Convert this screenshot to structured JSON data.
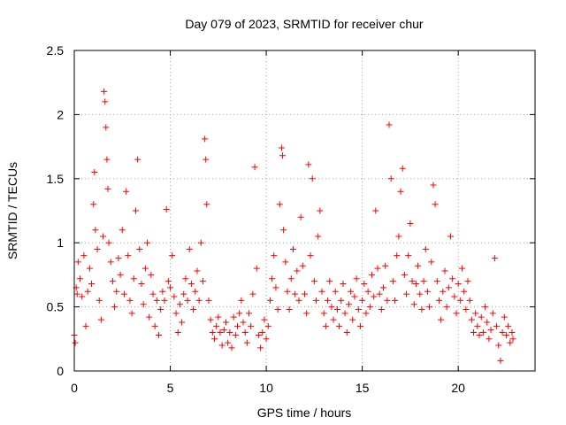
{
  "chart_data": {
    "type": "scatter",
    "title": "Day 079 of 2023, SRMTID for receiver chur",
    "xlabel": "GPS time / hours",
    "ylabel": "SRMTID / TECUs",
    "xlim": [
      0,
      24
    ],
    "ylim": [
      0,
      2.5
    ],
    "x_ticks": [
      0,
      5,
      10,
      15,
      20
    ],
    "x_tick_labels": [
      "0",
      "5",
      "10",
      "15",
      "20"
    ],
    "y_ticks": [
      0,
      0.5,
      1,
      1.5,
      2,
      2.5
    ],
    "y_tick_labels": [
      "0",
      "0.5",
      "1",
      "1.5",
      "2",
      "2.5"
    ],
    "grid": true,
    "marker": "+",
    "color": "#ff0000",
    "series": [
      {
        "name": "SRMTID",
        "points": [
          [
            0.0,
            0.28
          ],
          [
            0.05,
            0.22
          ],
          [
            0.1,
            0.65
          ],
          [
            0.15,
            0.6
          ],
          [
            0.2,
            0.85
          ],
          [
            0.3,
            0.72
          ],
          [
            0.4,
            0.58
          ],
          [
            0.5,
            0.9
          ],
          [
            0.6,
            0.35
          ],
          [
            0.7,
            0.62
          ],
          [
            0.8,
            0.8
          ],
          [
            0.9,
            0.68
          ],
          [
            1.0,
            1.3
          ],
          [
            1.05,
            1.55
          ],
          [
            1.1,
            1.1
          ],
          [
            1.2,
            0.95
          ],
          [
            1.3,
            0.55
          ],
          [
            1.4,
            0.4
          ],
          [
            1.5,
            1.05
          ],
          [
            1.55,
            2.18
          ],
          [
            1.6,
            2.1
          ],
          [
            1.65,
            1.9
          ],
          [
            1.7,
            1.65
          ],
          [
            1.75,
            1.42
          ],
          [
            1.8,
            1.0
          ],
          [
            1.9,
            0.85
          ],
          [
            2.0,
            0.7
          ],
          [
            2.1,
            0.5
          ],
          [
            2.2,
            0.62
          ],
          [
            2.3,
            0.88
          ],
          [
            2.4,
            0.75
          ],
          [
            2.5,
            1.1
          ],
          [
            2.6,
            0.6
          ],
          [
            2.7,
            1.4
          ],
          [
            2.8,
            0.9
          ],
          [
            2.9,
            0.55
          ],
          [
            3.0,
            0.45
          ],
          [
            3.1,
            0.72
          ],
          [
            3.2,
            1.25
          ],
          [
            3.3,
            1.65
          ],
          [
            3.4,
            0.95
          ],
          [
            3.5,
            0.68
          ],
          [
            3.6,
            0.52
          ],
          [
            3.7,
            0.8
          ],
          [
            3.8,
            1.0
          ],
          [
            3.9,
            0.42
          ],
          [
            4.0,
            0.75
          ],
          [
            4.1,
            0.6
          ],
          [
            4.2,
            0.35
          ],
          [
            4.3,
            0.55
          ],
          [
            4.4,
            0.28
          ],
          [
            4.5,
            0.48
          ],
          [
            4.6,
            0.62
          ],
          [
            4.7,
            0.55
          ],
          [
            4.8,
            1.26
          ],
          [
            4.9,
            0.7
          ],
          [
            5.0,
            0.65
          ],
          [
            5.1,
            0.9
          ],
          [
            5.2,
            0.58
          ],
          [
            5.3,
            0.45
          ],
          [
            5.4,
            0.3
          ],
          [
            5.5,
            0.52
          ],
          [
            5.6,
            0.38
          ],
          [
            5.7,
            0.6
          ],
          [
            5.8,
            0.72
          ],
          [
            5.9,
            0.55
          ],
          [
            6.0,
            0.95
          ],
          [
            6.1,
            0.68
          ],
          [
            6.2,
            0.48
          ],
          [
            6.3,
            0.62
          ],
          [
            6.4,
            0.78
          ],
          [
            6.5,
            0.55
          ],
          [
            6.6,
            1.0
          ],
          [
            6.7,
            0.7
          ],
          [
            6.8,
            1.81
          ],
          [
            6.85,
            1.65
          ],
          [
            6.9,
            1.3
          ],
          [
            7.0,
            0.55
          ],
          [
            7.1,
            0.4
          ],
          [
            7.2,
            0.3
          ],
          [
            7.3,
            0.25
          ],
          [
            7.4,
            0.35
          ],
          [
            7.5,
            0.42
          ],
          [
            7.6,
            0.3
          ],
          [
            7.7,
            0.2
          ],
          [
            7.8,
            0.32
          ],
          [
            7.9,
            0.38
          ],
          [
            8.0,
            0.22
          ],
          [
            8.1,
            0.3
          ],
          [
            8.2,
            0.18
          ],
          [
            8.3,
            0.42
          ],
          [
            8.4,
            0.28
          ],
          [
            8.5,
            0.35
          ],
          [
            8.6,
            0.45
          ],
          [
            8.7,
            0.55
          ],
          [
            8.8,
            0.38
          ],
          [
            8.9,
            0.3
          ],
          [
            9.0,
            0.22
          ],
          [
            9.1,
            0.45
          ],
          [
            9.2,
            0.35
          ],
          [
            9.3,
            0.6
          ],
          [
            9.4,
            1.59
          ],
          [
            9.5,
            0.8
          ],
          [
            9.6,
            0.28
          ],
          [
            9.7,
            0.18
          ],
          [
            9.8,
            0.3
          ],
          [
            9.9,
            0.4
          ],
          [
            10.0,
            0.25
          ],
          [
            10.1,
            0.35
          ],
          [
            10.2,
            0.55
          ],
          [
            10.3,
            0.72
          ],
          [
            10.4,
            0.9
          ],
          [
            10.5,
            0.65
          ],
          [
            10.6,
            0.48
          ],
          [
            10.7,
            1.3
          ],
          [
            10.8,
            1.74
          ],
          [
            10.85,
            1.68
          ],
          [
            10.9,
            1.1
          ],
          [
            11.0,
            0.85
          ],
          [
            11.1,
            0.62
          ],
          [
            11.2,
            0.48
          ],
          [
            11.3,
            0.72
          ],
          [
            11.4,
            0.95
          ],
          [
            11.5,
            0.6
          ],
          [
            11.6,
            0.78
          ],
          [
            11.7,
            0.55
          ],
          [
            11.8,
            1.2
          ],
          [
            11.9,
            0.82
          ],
          [
            12.0,
            0.6
          ],
          [
            12.1,
            0.45
          ],
          [
            12.2,
            1.61
          ],
          [
            12.3,
            0.9
          ],
          [
            12.4,
            1.5
          ],
          [
            12.5,
            0.7
          ],
          [
            12.6,
            0.55
          ],
          [
            12.7,
            1.05
          ],
          [
            12.8,
            1.25
          ],
          [
            12.9,
            0.62
          ],
          [
            13.0,
            0.45
          ],
          [
            13.1,
            0.35
          ],
          [
            13.2,
            0.55
          ],
          [
            13.3,
            0.7
          ],
          [
            13.4,
            0.5
          ],
          [
            13.5,
            0.4
          ],
          [
            13.6,
            0.62
          ],
          [
            13.7,
            0.48
          ],
          [
            13.8,
            0.35
          ],
          [
            13.9,
            0.55
          ],
          [
            14.0,
            0.68
          ],
          [
            14.1,
            0.45
          ],
          [
            14.2,
            0.3
          ],
          [
            14.3,
            0.52
          ],
          [
            14.4,
            0.62
          ],
          [
            14.5,
            0.4
          ],
          [
            14.6,
            0.58
          ],
          [
            14.7,
            0.72
          ],
          [
            14.8,
            0.48
          ],
          [
            14.9,
            0.35
          ],
          [
            15.0,
            0.55
          ],
          [
            15.1,
            0.68
          ],
          [
            15.2,
            0.45
          ],
          [
            15.3,
            0.62
          ],
          [
            15.4,
            0.5
          ],
          [
            15.5,
            0.75
          ],
          [
            15.6,
            0.58
          ],
          [
            15.7,
            1.25
          ],
          [
            15.8,
            0.8
          ],
          [
            15.9,
            0.6
          ],
          [
            16.0,
            0.48
          ],
          [
            16.1,
            0.65
          ],
          [
            16.2,
            0.82
          ],
          [
            16.3,
            0.55
          ],
          [
            16.4,
            1.92
          ],
          [
            16.5,
            1.5
          ],
          [
            16.6,
            0.7
          ],
          [
            16.7,
            0.55
          ],
          [
            16.8,
            0.9
          ],
          [
            16.9,
            1.05
          ],
          [
            17.0,
            1.4
          ],
          [
            17.1,
            1.58
          ],
          [
            17.2,
            0.75
          ],
          [
            17.3,
            0.6
          ],
          [
            17.4,
            0.9
          ],
          [
            17.5,
            1.15
          ],
          [
            17.6,
            0.7
          ],
          [
            17.7,
            0.52
          ],
          [
            17.8,
            0.68
          ],
          [
            17.9,
            0.82
          ],
          [
            18.0,
            0.6
          ],
          [
            18.1,
            0.48
          ],
          [
            18.2,
            0.7
          ],
          [
            18.3,
            0.95
          ],
          [
            18.4,
            0.62
          ],
          [
            18.5,
            0.5
          ],
          [
            18.6,
            0.85
          ],
          [
            18.7,
            1.45
          ],
          [
            18.8,
            1.3
          ],
          [
            18.9,
            0.7
          ],
          [
            19.0,
            0.55
          ],
          [
            19.1,
            0.4
          ],
          [
            19.2,
            0.62
          ],
          [
            19.3,
            0.78
          ],
          [
            19.4,
            0.5
          ],
          [
            19.5,
            0.65
          ],
          [
            19.6,
            1.05
          ],
          [
            19.7,
            0.72
          ],
          [
            19.8,
            0.58
          ],
          [
            19.9,
            0.45
          ],
          [
            20.0,
            0.68
          ],
          [
            20.1,
            0.55
          ],
          [
            20.2,
            0.8
          ],
          [
            20.3,
            0.62
          ],
          [
            20.4,
            0.48
          ],
          [
            20.5,
            0.7
          ],
          [
            20.6,
            0.55
          ],
          [
            20.7,
            0.4
          ],
          [
            20.8,
            0.3
          ],
          [
            20.9,
            0.45
          ],
          [
            21.0,
            0.35
          ],
          [
            21.1,
            0.28
          ],
          [
            21.2,
            0.42
          ],
          [
            21.3,
            0.3
          ],
          [
            21.4,
            0.5
          ],
          [
            21.5,
            0.38
          ],
          [
            21.6,
            0.25
          ],
          [
            21.7,
            0.32
          ],
          [
            21.8,
            0.45
          ],
          [
            21.9,
            0.88
          ],
          [
            22.0,
            0.35
          ],
          [
            22.1,
            0.2
          ],
          [
            22.2,
            0.08
          ],
          [
            22.3,
            0.3
          ],
          [
            22.4,
            0.42
          ],
          [
            22.5,
            0.28
          ],
          [
            22.6,
            0.35
          ],
          [
            22.7,
            0.22
          ],
          [
            22.8,
            0.3
          ],
          [
            22.85,
            0.25
          ]
        ]
      }
    ]
  }
}
